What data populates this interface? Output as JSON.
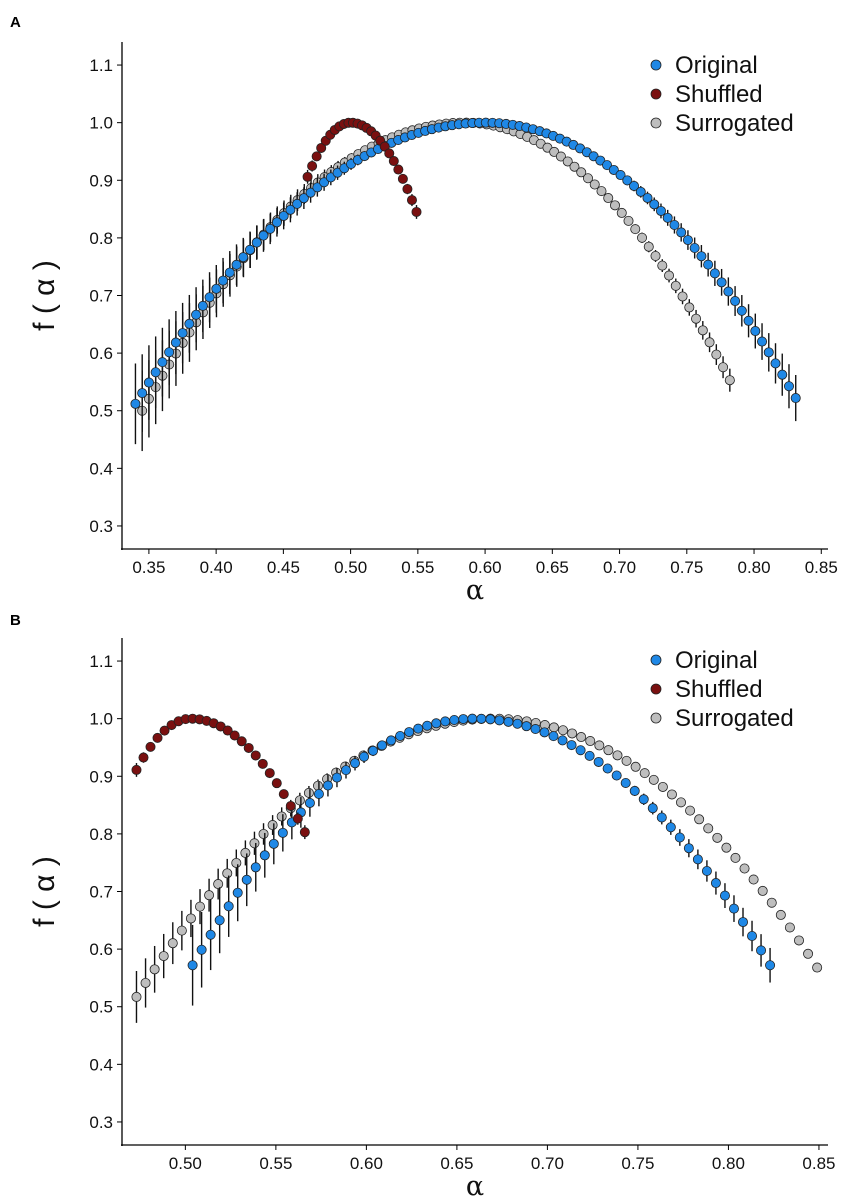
{
  "chart_data": [
    {
      "panel_label": "A",
      "type": "scatter",
      "title": "",
      "xlabel": "α",
      "ylabel": "f ( α )",
      "xlim": [
        0.33,
        0.855
      ],
      "ylim": [
        0.26,
        1.14
      ],
      "xticks": [
        "0.35",
        "0.40",
        "0.45",
        "0.50",
        "0.55",
        "0.60",
        "0.65",
        "0.70",
        "0.75",
        "0.80",
        "0.85"
      ],
      "yticks": [
        "0.3",
        "0.4",
        "0.5",
        "0.6",
        "0.7",
        "0.8",
        "0.9",
        "1.0",
        "1.1"
      ],
      "legend": [
        "Original",
        "Shuffled",
        "Surrogated"
      ],
      "series": [
        {
          "name": "Surrogated",
          "color": "#bebebe",
          "x_range": [
            0.345,
            0.782
          ],
          "peak_x": 0.585,
          "min_y_left": 0.5,
          "min_y_right": 0.553,
          "error_left": 0.07,
          "error_right": 0.02
        },
        {
          "name": "Original",
          "color": "#1f88e6",
          "x_range": [
            0.34,
            0.831
          ],
          "peak_x": 0.6,
          "min_y_left": 0.512,
          "min_y_right": 0.522,
          "error_left": 0.07,
          "error_right": 0.04
        },
        {
          "name": "Shuffled",
          "color": "#7a1010",
          "x_range": [
            0.468,
            0.549
          ],
          "peak_x": 0.5,
          "min_y_left": 0.906,
          "min_y_right": 0.845,
          "error_left": 0.012,
          "error_right": 0.012
        }
      ]
    },
    {
      "panel_label": "B",
      "type": "scatter",
      "title": "",
      "xlabel": "α",
      "ylabel": "f ( α )",
      "xlim": [
        0.465,
        0.855
      ],
      "ylim": [
        0.26,
        1.14
      ],
      "xticks": [
        "0.50",
        "0.55",
        "0.60",
        "0.65",
        "0.70",
        "0.75",
        "0.80",
        "0.85"
      ],
      "yticks": [
        "0.3",
        "0.4",
        "0.5",
        "0.6",
        "0.7",
        "0.8",
        "0.9",
        "1.0",
        "1.1"
      ],
      "legend": [
        "Original",
        "Shuffled",
        "Surrogated"
      ],
      "series": [
        {
          "name": "Surrogated",
          "color": "#bebebe",
          "x_range": [
            0.473,
            0.849
          ],
          "peak_x": 0.67,
          "min_y_left": 0.517,
          "min_y_right": 0.568,
          "error_left": 0.045,
          "error_right": 0.004
        },
        {
          "name": "Original",
          "color": "#1f88e6",
          "x_range": [
            0.504,
            0.823
          ],
          "peak_x": 0.66,
          "min_y_left": 0.572,
          "min_y_right": 0.572,
          "error_left": 0.07,
          "error_right": 0.03
        },
        {
          "name": "Shuffled",
          "color": "#7a1010",
          "x_range": [
            0.473,
            0.566
          ],
          "peak_x": 0.503,
          "min_y_left": 0.911,
          "min_y_right": 0.803,
          "error_left": 0.012,
          "error_right": 0.012
        }
      ]
    }
  ]
}
